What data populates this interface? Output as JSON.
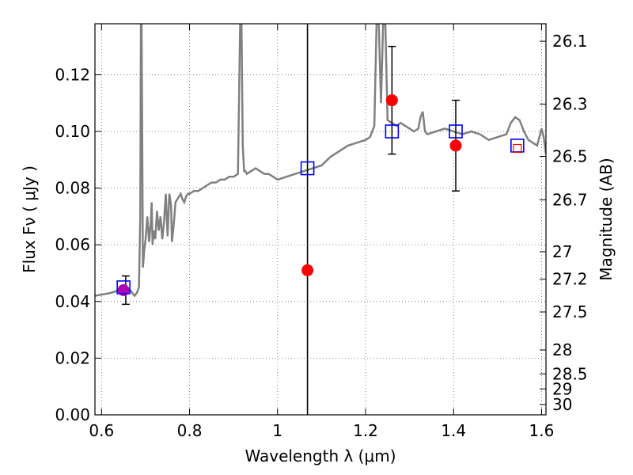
{
  "chart_data": {
    "type": "line",
    "xlabel": "Wavelength  λ (μm)",
    "ylabel": "Flux  Fν  ( μJy )",
    "ylabel2": "Magnitude (AB)",
    "xlim": [
      0.585,
      1.61
    ],
    "ylim": [
      0.0,
      0.138
    ],
    "grid": true,
    "x_ticks": [
      0.6,
      0.8,
      1.0,
      1.2,
      1.4,
      1.6
    ],
    "x_tick_labels": [
      "0.6",
      "0.8",
      "1",
      "1.2",
      "1.4",
      "1.6"
    ],
    "y_ticks": [
      0.0,
      0.02,
      0.04,
      0.06,
      0.08,
      0.1,
      0.12
    ],
    "y_tick_labels": [
      "0.00",
      "0.02",
      "0.04",
      "0.06",
      "0.08",
      "0.10",
      "0.12"
    ],
    "mag_ticks": [
      26.1,
      26.3,
      26.5,
      26.7,
      27,
      27.2,
      27.5,
      28,
      28.5,
      29,
      30
    ],
    "mag_tick_labels": [
      "26.1",
      "26.3",
      "26.5",
      "26.7",
      "27",
      "27.2",
      "27.5",
      "28",
      "28.5",
      "29",
      "30"
    ],
    "vertical_line_x": 1.068,
    "model_spectrum": {
      "x": [
        0.585,
        0.62,
        0.64,
        0.655,
        0.665,
        0.675,
        0.68,
        0.685,
        0.688,
        0.6895,
        0.691,
        0.6925,
        0.694,
        0.697,
        0.7,
        0.704,
        0.708,
        0.712,
        0.714,
        0.716,
        0.718,
        0.722,
        0.726,
        0.73,
        0.734,
        0.738,
        0.742,
        0.746,
        0.75,
        0.754,
        0.756,
        0.758,
        0.76,
        0.764,
        0.768,
        0.772,
        0.776,
        0.78,
        0.784,
        0.788,
        0.79,
        0.792,
        0.796,
        0.8,
        0.81,
        0.82,
        0.83,
        0.84,
        0.85,
        0.86,
        0.87,
        0.88,
        0.89,
        0.9,
        0.91,
        0.915,
        0.918,
        0.921,
        0.924,
        0.927,
        0.93,
        0.94,
        0.95,
        0.96,
        0.97,
        0.98,
        0.99,
        1.0,
        1.02,
        1.04,
        1.06,
        1.08,
        1.1,
        1.12,
        1.14,
        1.16,
        1.18,
        1.2,
        1.21,
        1.22,
        1.225,
        1.23,
        1.235,
        1.24,
        1.245,
        1.25,
        1.26,
        1.27,
        1.28,
        1.29,
        1.3,
        1.31,
        1.32,
        1.325,
        1.33,
        1.335,
        1.34,
        1.36,
        1.38,
        1.4,
        1.42,
        1.44,
        1.46,
        1.48,
        1.5,
        1.52,
        1.53,
        1.54,
        1.55,
        1.56,
        1.57,
        1.58,
        1.59,
        1.6,
        1.605,
        1.61
      ],
      "y": [
        0.042,
        0.043,
        0.044,
        0.043,
        0.044,
        0.042,
        0.043,
        0.045,
        0.07,
        0.138,
        0.138,
        0.095,
        0.052,
        0.058,
        0.062,
        0.07,
        0.061,
        0.068,
        0.075,
        0.06,
        0.065,
        0.062,
        0.072,
        0.065,
        0.07,
        0.062,
        0.068,
        0.078,
        0.063,
        0.078,
        0.076,
        0.074,
        0.061,
        0.067,
        0.075,
        0.076,
        0.077,
        0.078,
        0.076,
        0.075,
        0.076,
        0.077,
        0.078,
        0.078,
        0.079,
        0.079,
        0.08,
        0.081,
        0.082,
        0.082,
        0.083,
        0.083,
        0.084,
        0.084,
        0.085,
        0.138,
        0.138,
        0.095,
        0.086,
        0.086,
        0.085,
        0.086,
        0.087,
        0.086,
        0.085,
        0.085,
        0.084,
        0.083,
        0.084,
        0.085,
        0.086,
        0.087,
        0.088,
        0.091,
        0.093,
        0.095,
        0.096,
        0.097,
        0.098,
        0.102,
        0.138,
        0.138,
        0.11,
        0.138,
        0.138,
        0.104,
        0.103,
        0.102,
        0.103,
        0.102,
        0.101,
        0.1,
        0.101,
        0.105,
        0.107,
        0.1,
        0.099,
        0.1,
        0.101,
        0.1,
        0.099,
        0.1,
        0.099,
        0.097,
        0.098,
        0.099,
        0.103,
        0.105,
        0.104,
        0.1,
        0.097,
        0.096,
        0.095,
        0.101,
        0.098,
        0.092
      ]
    },
    "series": [
      {
        "name": "",
        "type": "scatter",
        "marker": "circle",
        "color": "#ff0000",
        "x": [
          0.65,
          1.068,
          1.26,
          1.405
        ],
        "y": [
          0.044,
          0.051,
          0.111,
          0.095
        ]
      },
      {
        "name": "",
        "type": "scatter",
        "marker": "square",
        "color": "#0000ff",
        "x": [
          0.65,
          1.068,
          1.26,
          1.405,
          1.545
        ],
        "y": [
          0.045,
          0.087,
          0.1,
          0.1,
          0.095
        ]
      }
    ],
    "error_bars": [
      {
        "x": 0.655,
        "y": 0.044,
        "low": 0.039,
        "high": 0.049
      },
      {
        "x": 1.26,
        "y": 0.111,
        "low": 0.092,
        "high": 0.13
      },
      {
        "x": 1.405,
        "y": 0.095,
        "low": 0.079,
        "high": 0.111
      }
    ],
    "upper_limit_marker": {
      "x": 1.545,
      "y": 0.094,
      "color": "#ff0000"
    },
    "colors": {
      "model": "#808080",
      "points": "#ff0000",
      "model_points": "#0000ff",
      "overlap": "#b000b0"
    }
  }
}
